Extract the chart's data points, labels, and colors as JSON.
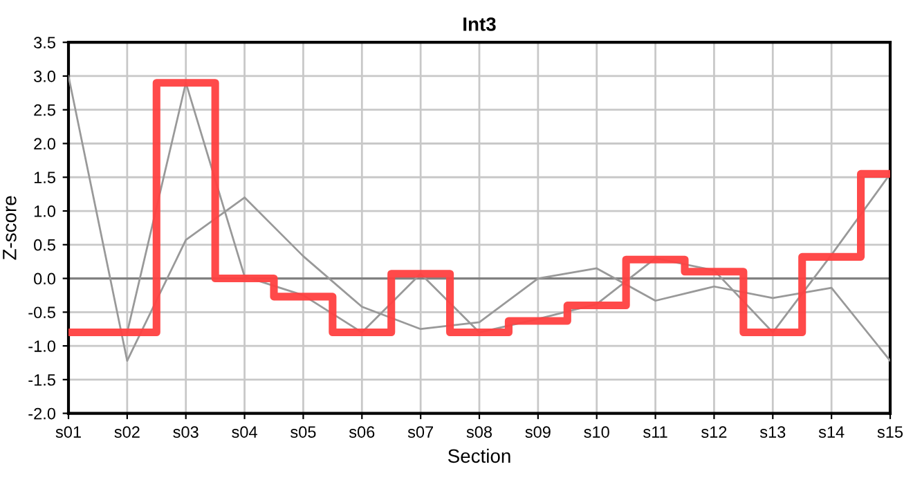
{
  "chart_data": {
    "type": "line",
    "title": "Int3",
    "xlabel": "Section",
    "ylabel": "Z-score",
    "categories": [
      "s01",
      "s02",
      "s03",
      "s04",
      "s05",
      "s06",
      "s07",
      "s08",
      "s09",
      "s10",
      "s11",
      "s12",
      "s13",
      "s14",
      "s15"
    ],
    "series": [
      {
        "color": "#999999",
        "values": [
          3.0,
          -1.22,
          0.57,
          1.2,
          0.33,
          -0.42,
          -0.75,
          -0.65,
          0.0,
          0.15,
          -0.33,
          -0.12,
          -0.29,
          -0.14,
          -1.22
        ]
      },
      {
        "color": "#999999",
        "values": [
          null,
          -0.8,
          2.9,
          0.03,
          -0.25,
          -0.8,
          0.07,
          -0.8,
          -0.6,
          -0.38,
          0.3,
          0.12,
          -0.8,
          0.35,
          1.55
        ]
      },
      {
        "type": "step",
        "color": "#ff4040",
        "values": [
          -0.8,
          -0.8,
          2.9,
          0.0,
          -0.27,
          -0.8,
          0.07,
          -0.8,
          -0.63,
          -0.4,
          0.28,
          0.1,
          -0.8,
          0.32,
          1.55
        ]
      }
    ],
    "ylim": [
      -2.0,
      3.5
    ],
    "yticks": [
      {
        "value": -2.0,
        "label": "-2.0"
      },
      {
        "value": -1.5,
        "label": "-1.5"
      },
      {
        "value": -1.0,
        "label": "-1.0"
      },
      {
        "value": -0.5,
        "label": "-0.5"
      },
      {
        "value": 0.0,
        "label": "0.0"
      },
      {
        "value": 0.5,
        "label": "0.5"
      },
      {
        "value": 1.0,
        "label": "1.0"
      },
      {
        "value": 1.5,
        "label": "1.5"
      },
      {
        "value": 2.0,
        "label": "2.0"
      },
      {
        "value": 2.5,
        "label": "2.5"
      },
      {
        "value": 3.0,
        "label": "3.0"
      },
      {
        "value": 3.5,
        "label": "3.5"
      }
    ],
    "ref_lines": [
      {
        "axis": "y",
        "value": 0.0,
        "color": "#808080"
      }
    ],
    "grid": true,
    "legend": false
  }
}
